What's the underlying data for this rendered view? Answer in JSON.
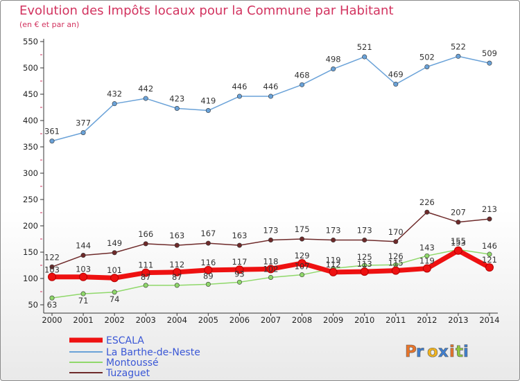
{
  "chart_data": {
    "type": "line",
    "title": "Evolution des Impôts locaux pour la Commune par Habitant",
    "subtitle": "(en € et par an)",
    "x": [
      "2000",
      "2001",
      "2002",
      "2003",
      "2004",
      "2005",
      "2006",
      "2007",
      "2008",
      "2009",
      "2010",
      "2011",
      "2012",
      "2013",
      "2014"
    ],
    "ylim": [
      50,
      550
    ],
    "yticks": [
      50,
      100,
      150,
      200,
      250,
      300,
      350,
      400,
      450,
      500,
      550
    ],
    "grid": false,
    "legend_position": "bottom-left",
    "series": [
      {
        "name": "ESCALA",
        "color": "#ee1111",
        "values": [
          103,
          103,
          101,
          111,
          112,
          116,
          117,
          118,
          129,
          112,
          113,
          115,
          119,
          153,
          121
        ]
      },
      {
        "name": "La Barthe-de-Neste",
        "color": "#6aa2d8",
        "values": [
          361,
          377,
          432,
          442,
          423,
          419,
          446,
          446,
          468,
          498,
          521,
          469,
          502,
          522,
          509
        ]
      },
      {
        "name": "Montoussé",
        "color": "#8fd86a",
        "values": [
          63,
          71,
          74,
          87,
          87,
          89,
          93,
          102,
          107,
          119,
          125,
          126,
          143,
          155,
          146
        ]
      },
      {
        "name": "Tuzaguet",
        "color": "#6e2a2a",
        "values": [
          122,
          144,
          149,
          166,
          163,
          167,
          163,
          173,
          175,
          173,
          173,
          170,
          226,
          207,
          213
        ]
      }
    ]
  },
  "brand": {
    "logo_text": "Proxiti",
    "letters": [
      "P",
      "r",
      "o",
      "x",
      "i",
      "t",
      "i"
    ]
  }
}
